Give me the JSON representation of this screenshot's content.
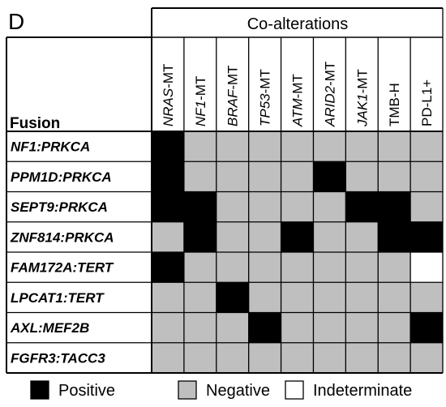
{
  "chart_data": {
    "type": "heatmap",
    "panel_label": "D",
    "column_group_label": "Co-alterations",
    "row_header": "Fusion",
    "columns": [
      {
        "text": "NRAS",
        "suffix": "-MT",
        "italic": true
      },
      {
        "text": "NF1",
        "suffix": "-MT",
        "italic": true
      },
      {
        "text": "BRAF",
        "suffix": "-MT",
        "italic": true
      },
      {
        "text": "TP53",
        "suffix": "-MT",
        "italic": true
      },
      {
        "text": "ATM",
        "suffix": "-MT",
        "italic": true
      },
      {
        "text": "ARID2",
        "suffix": "-MT",
        "italic": true
      },
      {
        "text": "JAK1",
        "suffix": "-MT",
        "italic": true
      },
      {
        "text": "TMB-H",
        "suffix": "",
        "italic": false
      },
      {
        "text": "PD-L1+",
        "suffix": "",
        "italic": false
      }
    ],
    "rows": [
      "NF1:PRKCA",
      "PPM1D:PRKCA",
      "SEPT9:PRKCA",
      "ZNF814:PRKCA",
      "FAM172A:TERT",
      "LPCAT1:TERT",
      "AXL:MEF2B",
      "FGFR3:TACC3"
    ],
    "values": [
      [
        "Positive",
        "Negative",
        "Negative",
        "Negative",
        "Negative",
        "Negative",
        "Negative",
        "Negative",
        "Negative"
      ],
      [
        "Positive",
        "Negative",
        "Negative",
        "Negative",
        "Negative",
        "Positive",
        "Negative",
        "Negative",
        "Negative"
      ],
      [
        "Positive",
        "Positive",
        "Negative",
        "Negative",
        "Negative",
        "Negative",
        "Positive",
        "Positive",
        "Negative"
      ],
      [
        "Negative",
        "Positive",
        "Negative",
        "Negative",
        "Positive",
        "Negative",
        "Negative",
        "Positive",
        "Positive"
      ],
      [
        "Positive",
        "Negative",
        "Negative",
        "Negative",
        "Negative",
        "Negative",
        "Negative",
        "Negative",
        "Indeterminate"
      ],
      [
        "Negative",
        "Negative",
        "Positive",
        "Negative",
        "Negative",
        "Negative",
        "Negative",
        "Negative",
        "Negative"
      ],
      [
        "Negative",
        "Negative",
        "Negative",
        "Positive",
        "Negative",
        "Negative",
        "Negative",
        "Negative",
        "Positive"
      ],
      [
        "Negative",
        "Negative",
        "Negative",
        "Negative",
        "Negative",
        "Negative",
        "Negative",
        "Negative",
        "Negative"
      ]
    ],
    "legend": [
      {
        "label": "Positive",
        "color": "#000000"
      },
      {
        "label": "Negative",
        "color": "#bfbfbf"
      },
      {
        "label": "Indeterminate",
        "color": "#ffffff"
      }
    ],
    "legend_position": "bottom"
  }
}
